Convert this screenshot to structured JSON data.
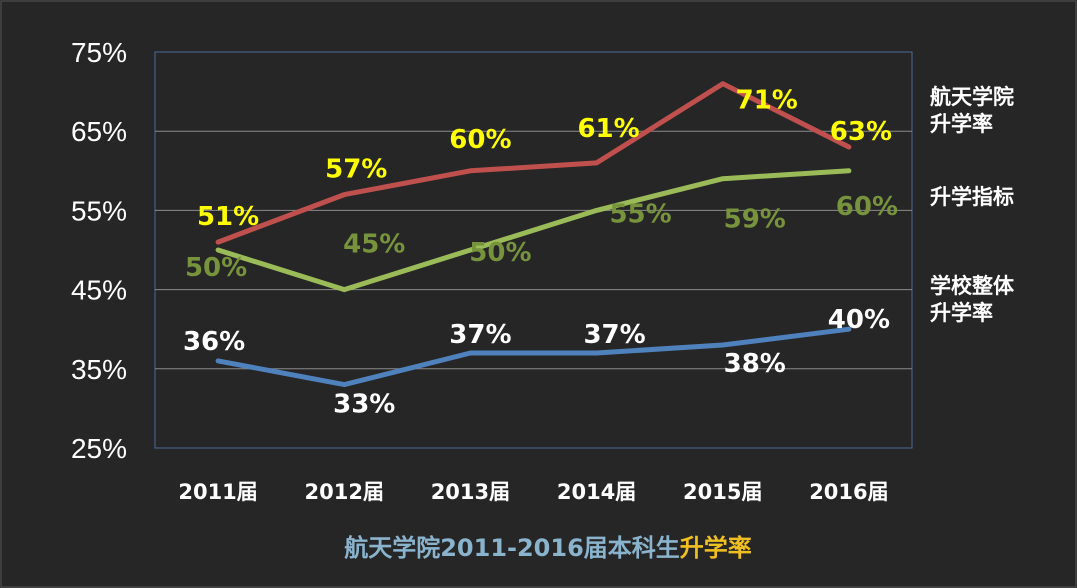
{
  "chart_data": {
    "type": "line",
    "categories": [
      "2011届",
      "2012届",
      "2013届",
      "2014届",
      "2015届",
      "2016届"
    ],
    "ylim": [
      25,
      75
    ],
    "yticks": [
      25,
      35,
      45,
      55,
      65,
      75
    ],
    "ytick_labels": [
      "25%",
      "35%",
      "45%",
      "55%",
      "65%",
      "75%"
    ],
    "grid": true,
    "legend_placement": "right",
    "title_parts": [
      {
        "text": "航天学院2011-2016届本科生",
        "color": "#8ab4ce"
      },
      {
        "text": "升学率",
        "color": "#f0c020"
      }
    ],
    "series": [
      {
        "name": "航天学院升学率",
        "legend_lines": [
          "航天学院",
          "升学率"
        ],
        "color": "#c0504d",
        "label_color": "#ffff00",
        "values": [
          51,
          57,
          60,
          61,
          71,
          63
        ],
        "labels": [
          "51%",
          "57%",
          "60%",
          "61%",
          "71%",
          "63%"
        ]
      },
      {
        "name": "升学指标",
        "legend_lines": [
          "升学指标"
        ],
        "color": "#9bbb59",
        "label_color": "#77933c",
        "values": [
          50,
          45,
          50,
          55,
          59,
          60
        ],
        "labels": [
          "50%",
          "45%",
          "50%",
          "55%",
          "59%",
          "60%"
        ]
      },
      {
        "name": "学校整体升学率",
        "legend_lines": [
          "学校整体",
          "升学率"
        ],
        "color": "#4f81bd",
        "label_color": "#ffffff",
        "values": [
          36,
          33,
          37,
          37,
          38,
          40
        ],
        "labels": [
          "36%",
          "33%",
          "37%",
          "37%",
          "38%",
          "40%"
        ]
      }
    ]
  }
}
